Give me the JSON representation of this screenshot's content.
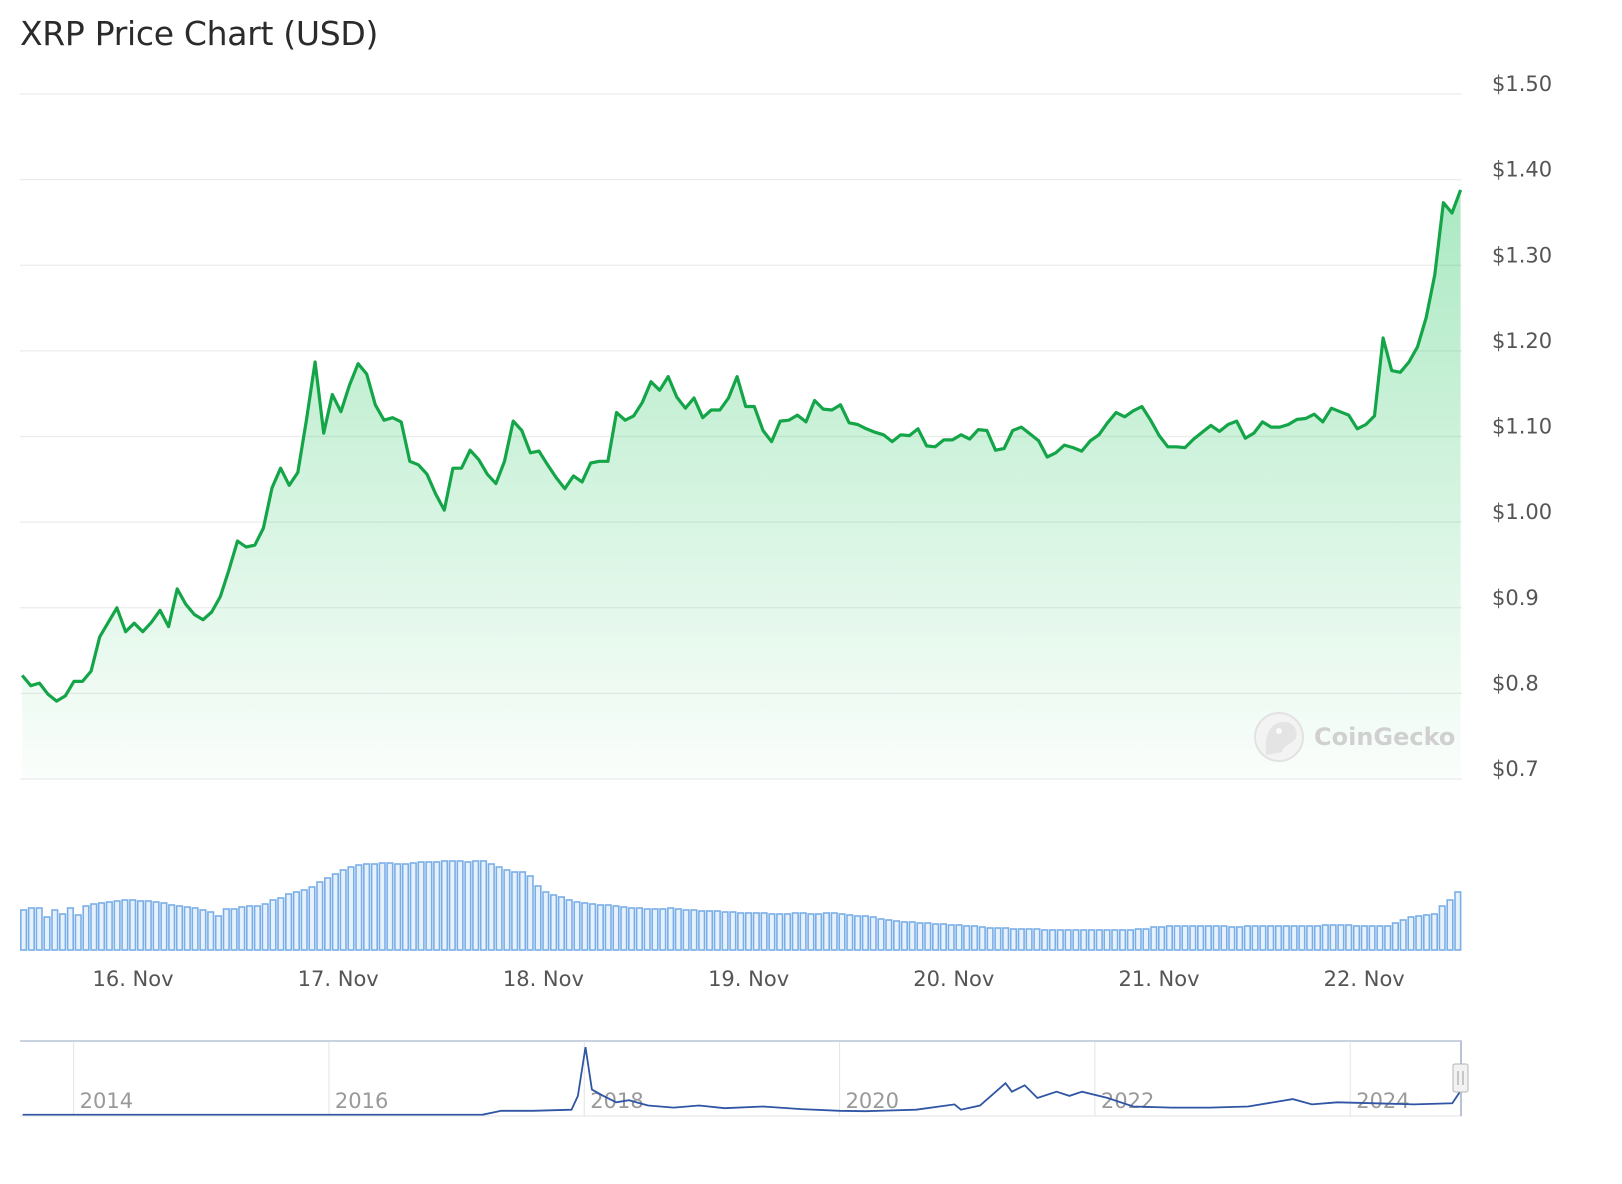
{
  "chart_data": {
    "type": "line",
    "title": "XRP Price Chart (USD)",
    "watermark": "CoinGecko",
    "xlabel": "",
    "ylabel": "",
    "ylim": [
      0.7,
      1.5
    ],
    "y_ticks": [
      {
        "value": 1.5,
        "label": "$1.50"
      },
      {
        "value": 1.4,
        "label": "$1.40"
      },
      {
        "value": 1.3,
        "label": "$1.30"
      },
      {
        "value": 1.2,
        "label": "$1.20"
      },
      {
        "value": 1.1,
        "label": "$1.10"
      },
      {
        "value": 1.0,
        "label": "$1.00"
      },
      {
        "value": 0.9,
        "label": "$0.9"
      },
      {
        "value": 0.8,
        "label": "$0.8"
      },
      {
        "value": 0.7,
        "label": "$0.7"
      }
    ],
    "x_ticks": [
      {
        "day": 16,
        "label": "16. Nov"
      },
      {
        "day": 17,
        "label": "17. Nov"
      },
      {
        "day": 18,
        "label": "18. Nov"
      },
      {
        "day": 19,
        "label": "19. Nov"
      },
      {
        "day": 20,
        "label": "20. Nov"
      },
      {
        "day": 21,
        "label": "21. Nov"
      },
      {
        "day": 22,
        "label": "22. Nov"
      }
    ],
    "x_range_days": [
      15.46,
      22.47
    ],
    "grid": true,
    "colors": {
      "line": "#14a548",
      "fill": "#22c55e",
      "volume": "#7aaee6",
      "volume_fill": "#e6f1fc",
      "navigator": "#2f55a4",
      "grid": "#ececec"
    },
    "series": [
      {
        "name": "XRP price (USD)",
        "values": [
          0.821,
          0.809,
          0.812,
          0.799,
          0.791,
          0.797,
          0.814,
          0.814,
          0.826,
          0.866,
          0.883,
          0.9,
          0.872,
          0.882,
          0.872,
          0.883,
          0.897,
          0.878,
          0.922,
          0.904,
          0.892,
          0.886,
          0.895,
          0.913,
          0.944,
          0.978,
          0.971,
          0.973,
          0.993,
          1.04,
          1.063,
          1.043,
          1.058,
          1.119,
          1.187,
          1.104,
          1.149,
          1.129,
          1.16,
          1.185,
          1.173,
          1.137,
          1.119,
          1.122,
          1.117,
          1.071,
          1.067,
          1.056,
          1.033,
          1.014,
          1.063,
          1.063,
          1.084,
          1.073,
          1.056,
          1.045,
          1.071,
          1.118,
          1.107,
          1.081,
          1.083,
          1.067,
          1.052,
          1.039,
          1.054,
          1.047,
          1.069,
          1.071,
          1.071,
          1.128,
          1.119,
          1.124,
          1.14,
          1.164,
          1.154,
          1.17,
          1.146,
          1.133,
          1.145,
          1.122,
          1.131,
          1.131,
          1.145,
          1.17,
          1.135,
          1.135,
          1.107,
          1.094,
          1.118,
          1.119,
          1.125,
          1.117,
          1.142,
          1.132,
          1.131,
          1.137,
          1.116,
          1.114,
          1.109,
          1.105,
          1.102,
          1.094,
          1.102,
          1.101,
          1.109,
          1.089,
          1.088,
          1.096,
          1.096,
          1.102,
          1.097,
          1.108,
          1.107,
          1.084,
          1.086,
          1.107,
          1.111,
          1.103,
          1.095,
          1.076,
          1.081,
          1.09,
          1.087,
          1.083,
          1.095,
          1.102,
          1.116,
          1.128,
          1.123,
          1.13,
          1.135,
          1.119,
          1.101,
          1.088,
          1.088,
          1.087,
          1.097,
          1.105,
          1.113,
          1.106,
          1.114,
          1.118,
          1.098,
          1.104,
          1.117,
          1.111,
          1.111,
          1.114,
          1.12,
          1.121,
          1.126,
          1.117,
          1.133,
          1.129,
          1.125,
          1.109,
          1.114,
          1.124,
          1.215,
          1.177,
          1.175,
          1.187,
          1.205,
          1.239,
          1.289,
          1.373,
          1.361,
          1.388
        ]
      }
    ],
    "volume": {
      "unit": "relative",
      "values": [
        40,
        42,
        42,
        33,
        40,
        36,
        42,
        35,
        44,
        46,
        47,
        48,
        49,
        50,
        50,
        49,
        49,
        48,
        47,
        45,
        44,
        43,
        42,
        40,
        38,
        34,
        41,
        41,
        43,
        44,
        44,
        46,
        50,
        52,
        56,
        58,
        60,
        63,
        68,
        72,
        76,
        80,
        83,
        85,
        86,
        86,
        87,
        87,
        86,
        86,
        87,
        88,
        88,
        88,
        89,
        89,
        89,
        88,
        89,
        89,
        86,
        83,
        80,
        78,
        78,
        74,
        64,
        58,
        55,
        53,
        50,
        48,
        47,
        46,
        45,
        45,
        44,
        43,
        42,
        42,
        41,
        41,
        41,
        42,
        41,
        40,
        40,
        39,
        39,
        39,
        38,
        38,
        37,
        37,
        37,
        37,
        36,
        36,
        36,
        37,
        37,
        36,
        36,
        37,
        37,
        36,
        35,
        34,
        34,
        33,
        31,
        30,
        29,
        28,
        28,
        27,
        27,
        26,
        26,
        25,
        25,
        24,
        24,
        23,
        22,
        22,
        22,
        21,
        21,
        21,
        21,
        20,
        20,
        20,
        20,
        20,
        20,
        20,
        20,
        20,
        20,
        20,
        20,
        21,
        21,
        23,
        23,
        24,
        24,
        24,
        24,
        24,
        24,
        24,
        24,
        23,
        23,
        24,
        24,
        24,
        24,
        24,
        24,
        24,
        24,
        24,
        24,
        25,
        25,
        25,
        25,
        24,
        24,
        24,
        24,
        24,
        27,
        30,
        33,
        34,
        35,
        36,
        44,
        50,
        58
      ]
    },
    "navigator": {
      "year_ticks": [
        {
          "year": 2014,
          "label": "2014"
        },
        {
          "year": 2016,
          "label": "2016"
        },
        {
          "year": 2018,
          "label": "2018"
        },
        {
          "year": 2020,
          "label": "2020"
        },
        {
          "year": 2022,
          "label": "2022"
        },
        {
          "year": 2024,
          "label": "2024"
        }
      ],
      "year_range": [
        2013.58,
        2024.86
      ],
      "ylim": [
        0,
        3.3
      ],
      "points": [
        [
          2013.6,
          0.01
        ],
        [
          2017.2,
          0.01
        ],
        [
          2017.35,
          0.2
        ],
        [
          2017.6,
          0.2
        ],
        [
          2017.9,
          0.25
        ],
        [
          2017.95,
          0.9
        ],
        [
          2018.01,
          3.2
        ],
        [
          2018.06,
          1.2
        ],
        [
          2018.15,
          0.9
        ],
        [
          2018.25,
          0.6
        ],
        [
          2018.35,
          0.7
        ],
        [
          2018.5,
          0.45
        ],
        [
          2018.7,
          0.35
        ],
        [
          2018.9,
          0.45
        ],
        [
          2019.1,
          0.32
        ],
        [
          2019.4,
          0.4
        ],
        [
          2019.7,
          0.28
        ],
        [
          2020.0,
          0.2
        ],
        [
          2020.2,
          0.18
        ],
        [
          2020.6,
          0.25
        ],
        [
          2020.9,
          0.5
        ],
        [
          2020.95,
          0.25
        ],
        [
          2021.1,
          0.45
        ],
        [
          2021.3,
          1.5
        ],
        [
          2021.35,
          1.1
        ],
        [
          2021.45,
          1.4
        ],
        [
          2021.55,
          0.8
        ],
        [
          2021.7,
          1.1
        ],
        [
          2021.8,
          0.9
        ],
        [
          2021.9,
          1.1
        ],
        [
          2022.1,
          0.8
        ],
        [
          2022.3,
          0.4
        ],
        [
          2022.6,
          0.35
        ],
        [
          2022.9,
          0.35
        ],
        [
          2023.2,
          0.4
        ],
        [
          2023.55,
          0.75
        ],
        [
          2023.7,
          0.5
        ],
        [
          2023.9,
          0.6
        ],
        [
          2024.2,
          0.55
        ],
        [
          2024.5,
          0.5
        ],
        [
          2024.8,
          0.55
        ],
        [
          2024.86,
          1.1
        ]
      ]
    }
  }
}
